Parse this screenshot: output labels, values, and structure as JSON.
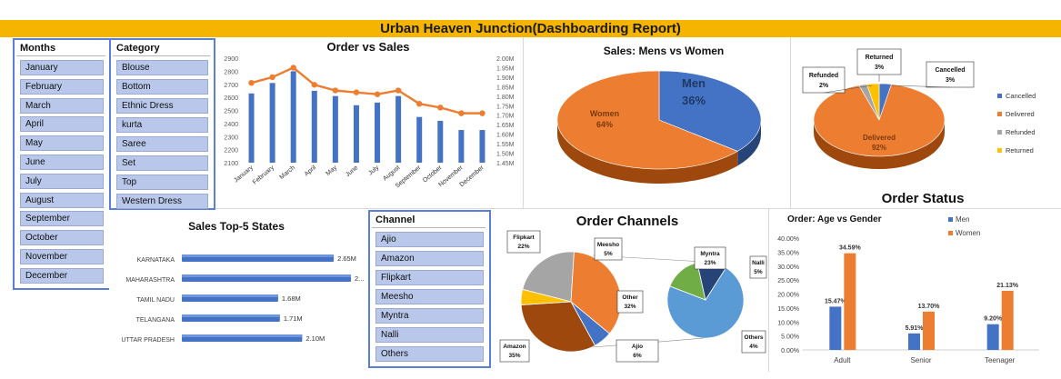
{
  "header": {
    "title": "Urban Heaven Junction(Dashboarding Report)"
  },
  "colors": {
    "blue": "#4472c4",
    "orange": "#ed7d31",
    "gray": "#a5a5a5",
    "yellow": "#ffc000",
    "gold_bar": "#f5b400",
    "slicer_fill": "#b8c7ea",
    "light_blue": "#5b9bd5",
    "green": "#70ad47",
    "navy": "#264478",
    "brown": "#9e480e"
  },
  "slicers": {
    "months": {
      "title": "Months",
      "items": [
        "January",
        "February",
        "March",
        "April",
        "May",
        "June",
        "July",
        "August",
        "September",
        "October",
        "November",
        "December"
      ]
    },
    "category": {
      "title": "Category",
      "items": [
        "Blouse",
        "Bottom",
        "Ethnic Dress",
        "kurta",
        "Saree",
        "Set",
        "Top",
        "Western Dress"
      ]
    },
    "channel": {
      "title": "Channel",
      "items": [
        "Ajio",
        "Amazon",
        "Flipkart",
        "Meesho",
        "Myntra",
        "Nalli",
        "Others"
      ]
    }
  },
  "chart_data": [
    {
      "id": "order_vs_sales",
      "type": "bar",
      "title": "Order vs Sales",
      "categories": [
        "January",
        "February",
        "March",
        "April",
        "May",
        "June",
        "July",
        "August",
        "September",
        "October",
        "November",
        "December"
      ],
      "series": [
        {
          "name": "",
          "chart": "bar",
          "axis": "left",
          "values": [
            2630,
            2710,
            2800,
            2650,
            2610,
            2540,
            2560,
            2610,
            2450,
            2420,
            2350,
            2350
          ]
        },
        {
          "name": "",
          "chart": "line",
          "axis": "right",
          "values": [
            1.87,
            1.9,
            1.95,
            1.86,
            1.83,
            1.82,
            1.81,
            1.83,
            1.76,
            1.74,
            1.71,
            1.71
          ]
        }
      ],
      "ylim_left": [
        2100,
        2900
      ],
      "yticks_left": [
        "2900",
        "2800",
        "2700",
        "2600",
        "2500",
        "2400",
        "2300",
        "2200",
        "2100"
      ],
      "ylim_right": [
        1.45,
        2.0
      ],
      "yticks_right": [
        "2.00M",
        "1.95M",
        "1.90M",
        "1.85M",
        "1.80M",
        "1.75M",
        "1.70M",
        "1.65M",
        "1.60M",
        "1.55M",
        "1.50M",
        "1.45M"
      ]
    },
    {
      "id": "sales_mens_women",
      "type": "pie",
      "title": "Sales: Mens vs Women",
      "labels": [
        "Men",
        "Women"
      ],
      "values": [
        36,
        64
      ],
      "value_labels": [
        "36%",
        "64%"
      ]
    },
    {
      "id": "order_status",
      "type": "pie",
      "title": "Order Status",
      "labels": [
        "Cancelled",
        "Delivered",
        "Refunded",
        "Returned"
      ],
      "values": [
        3,
        92,
        2,
        3
      ],
      "value_labels": [
        "3%",
        "92%",
        "2%",
        "3%"
      ],
      "legend": "right"
    },
    {
      "id": "sales_top5_states",
      "type": "bar",
      "orientation": "horizontal",
      "title": "Sales Top-5 States",
      "categories": [
        "KARNATAKA",
        "MAHARASHTRA",
        "TAMIL NADU",
        "TELANGANA",
        "UTTAR PRADESH"
      ],
      "values": [
        2.65,
        2.95,
        1.68,
        1.71,
        2.1
      ],
      "value_labels": [
        "2.65M",
        "2...",
        "1.68M",
        "1.71M",
        "2.10M"
      ]
    },
    {
      "id": "order_channels",
      "type": "pie",
      "title": "Order Channels",
      "main": {
        "labels": [
          "Flipkart",
          "Amazon",
          "Ajio",
          "Other",
          "Meesho"
        ],
        "values": [
          22,
          35,
          6,
          32,
          5
        ],
        "value_labels": [
          "22%",
          "35%",
          "6%",
          "32%",
          "5%"
        ]
      },
      "detail": {
        "labels": [
          "Myntra",
          "Nalli",
          "Others"
        ],
        "values": [
          23,
          5,
          4
        ],
        "value_labels": [
          "23%",
          "5%",
          "4%"
        ]
      }
    },
    {
      "id": "age_vs_gender",
      "type": "bar",
      "title": "Order: Age vs Gender",
      "categories": [
        "Adult",
        "Senior",
        "Teenager"
      ],
      "series": [
        {
          "name": "Men",
          "values": [
            15.47,
            5.91,
            9.2
          ]
        },
        {
          "name": "Women",
          "values": [
            34.59,
            13.7,
            21.13
          ]
        }
      ],
      "value_labels": {
        "Men": [
          "15.47%",
          "5.91%",
          "9.20%"
        ],
        "Women": [
          "34.59%",
          "13.70%",
          "21.13%"
        ]
      },
      "ylim": [
        0,
        40
      ],
      "yticks": [
        "0.00%",
        "5.00%",
        "10.00%",
        "15.00%",
        "20.00%",
        "25.00%",
        "30.00%",
        "35.00%",
        "40.00%"
      ],
      "legend": "top"
    }
  ]
}
